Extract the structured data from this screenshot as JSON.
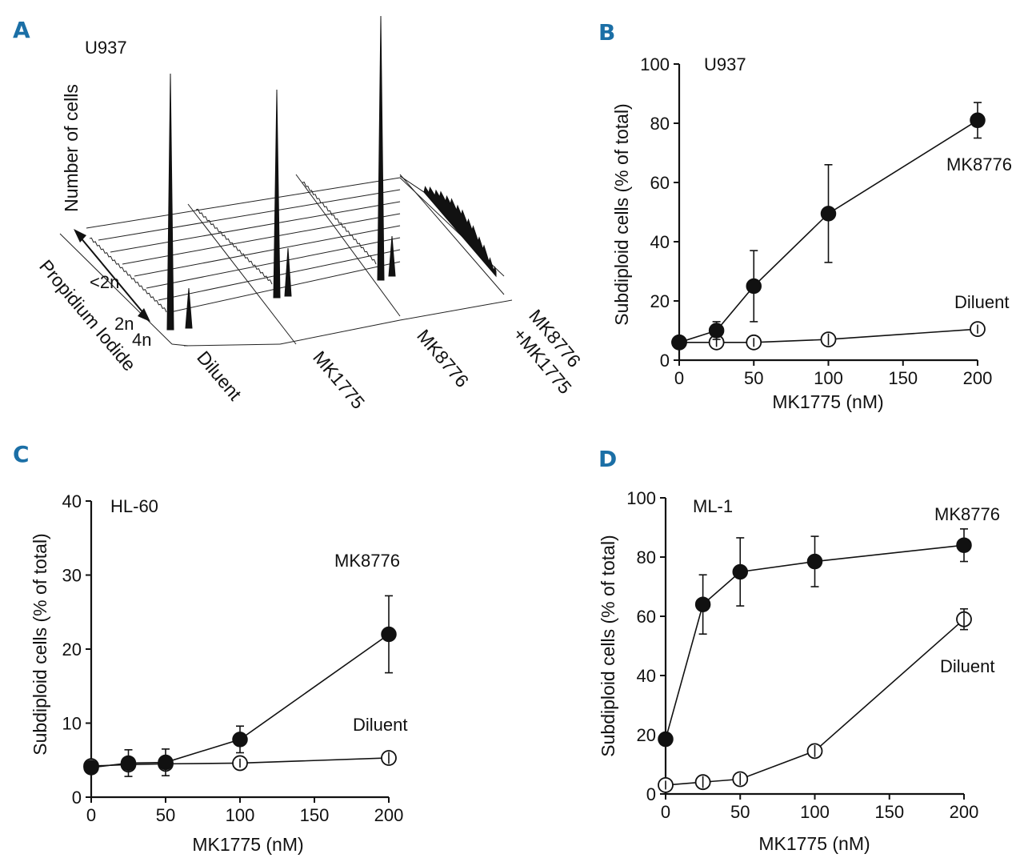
{
  "panel_labels": {
    "a": "A",
    "b": "B",
    "c": "C",
    "d": "D"
  },
  "chart_data": [
    {
      "panel": "A",
      "type": "histogram-3d",
      "cell_line": "U937",
      "ylabel": "Number of cells",
      "xlabel": "Propidium Iodide",
      "ploidy_labels": [
        "<2n",
        "2n",
        "4n"
      ],
      "treatments": [
        "Diluent",
        "MK1775",
        "MK8776",
        "MK8776 +MK1775"
      ],
      "treatment_lines": [
        "MK8776",
        "+MK1775"
      ]
    },
    {
      "panel": "B",
      "type": "line",
      "cell_line": "U937",
      "xlabel": "MK1775 (nM)",
      "ylabel": "Subdiploid cells (% of total)",
      "xlim": [
        0,
        200
      ],
      "ylim": [
        0,
        100
      ],
      "xticks": [
        0,
        50,
        100,
        150,
        200
      ],
      "yticks": [
        0,
        20,
        40,
        60,
        80,
        100
      ],
      "series": [
        {
          "name": "MK8776",
          "marker": "filled",
          "x": [
            0,
            25,
            50,
            100,
            200
          ],
          "y": [
            6,
            10,
            25,
            49.5,
            81
          ],
          "err": [
            0,
            3,
            12,
            16.5,
            6
          ]
        },
        {
          "name": "Diluent",
          "marker": "open",
          "x": [
            0,
            25,
            50,
            100,
            200
          ],
          "y": [
            6,
            6,
            6,
            7,
            10.5
          ],
          "err": [
            0,
            1.5,
            1.5,
            2,
            1.5
          ]
        }
      ]
    },
    {
      "panel": "C",
      "type": "line",
      "cell_line": "HL-60",
      "xlabel": "MK1775 (nM)",
      "ylabel": "Subdiploid cells (% of total)",
      "xlim": [
        0,
        200
      ],
      "ylim": [
        0,
        40
      ],
      "xticks": [
        0,
        50,
        100,
        150,
        200
      ],
      "yticks": [
        0,
        10,
        20,
        30,
        40
      ],
      "series": [
        {
          "name": "MK8776",
          "marker": "filled",
          "x": [
            0,
            25,
            50,
            100,
            200
          ],
          "y": [
            4,
            4.6,
            4.7,
            7.8,
            22
          ],
          "err": [
            0.5,
            1.8,
            1.8,
            1.8,
            5.2
          ]
        },
        {
          "name": "Diluent",
          "marker": "open",
          "x": [
            0,
            25,
            50,
            100,
            200
          ],
          "y": [
            4.2,
            4.4,
            4.5,
            4.6,
            5.3
          ],
          "err": [
            0.5,
            0.8,
            0.8,
            0.6,
            0.8
          ]
        }
      ]
    },
    {
      "panel": "D",
      "type": "line",
      "cell_line": "ML-1",
      "xlabel": "MK1775 (nM)",
      "ylabel": "Subdiploid cells (% of total)",
      "xlim": [
        0,
        200
      ],
      "ylim": [
        0,
        100
      ],
      "xticks": [
        0,
        50,
        100,
        150,
        200
      ],
      "yticks": [
        0,
        20,
        40,
        60,
        80,
        100
      ],
      "series": [
        {
          "name": "MK8776",
          "marker": "filled",
          "x": [
            0,
            25,
            50,
            100,
            200
          ],
          "y": [
            18.5,
            64,
            75,
            78.5,
            84
          ],
          "err": [
            0,
            10,
            11.5,
            8.5,
            5.5
          ]
        },
        {
          "name": "Diluent",
          "marker": "open",
          "x": [
            0,
            25,
            50,
            100,
            200
          ],
          "y": [
            3,
            4,
            5,
            14.5,
            59
          ],
          "err": [
            1.5,
            2,
            2,
            2,
            3.5
          ]
        }
      ]
    }
  ]
}
